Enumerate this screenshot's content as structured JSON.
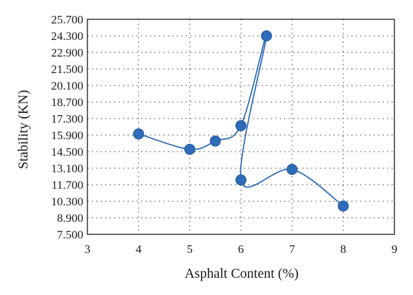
{
  "chart_data": {
    "type": "scatter",
    "title": "",
    "xlabel": "Asphalt Content (%)",
    "ylabel": "Stability (KN)",
    "xlim": [
      3,
      9
    ],
    "ylim": [
      7.5,
      25.7
    ],
    "x_ticks": [
      "3",
      "4",
      "5",
      "6",
      "7",
      "8",
      "9"
    ],
    "y_ticks": [
      "7.500",
      "8.900",
      "10.300",
      "11.700",
      "13.100",
      "14.500",
      "15.900",
      "17.300",
      "18.700",
      "20.100",
      "21.500",
      "22.900",
      "24.300",
      "25.700"
    ],
    "grid": "dotted",
    "smoothed_line": true,
    "marker": "circle",
    "colors": {
      "series": "#2e6bb8",
      "axis": "#000000",
      "grid": "#555555"
    },
    "series": [
      {
        "x": [
          4,
          5,
          5.5,
          6,
          6.5,
          6,
          7,
          8
        ],
        "y": [
          16.0,
          14.7,
          15.4,
          16.7,
          24.3,
          12.1,
          13.0,
          9.9
        ]
      }
    ]
  }
}
